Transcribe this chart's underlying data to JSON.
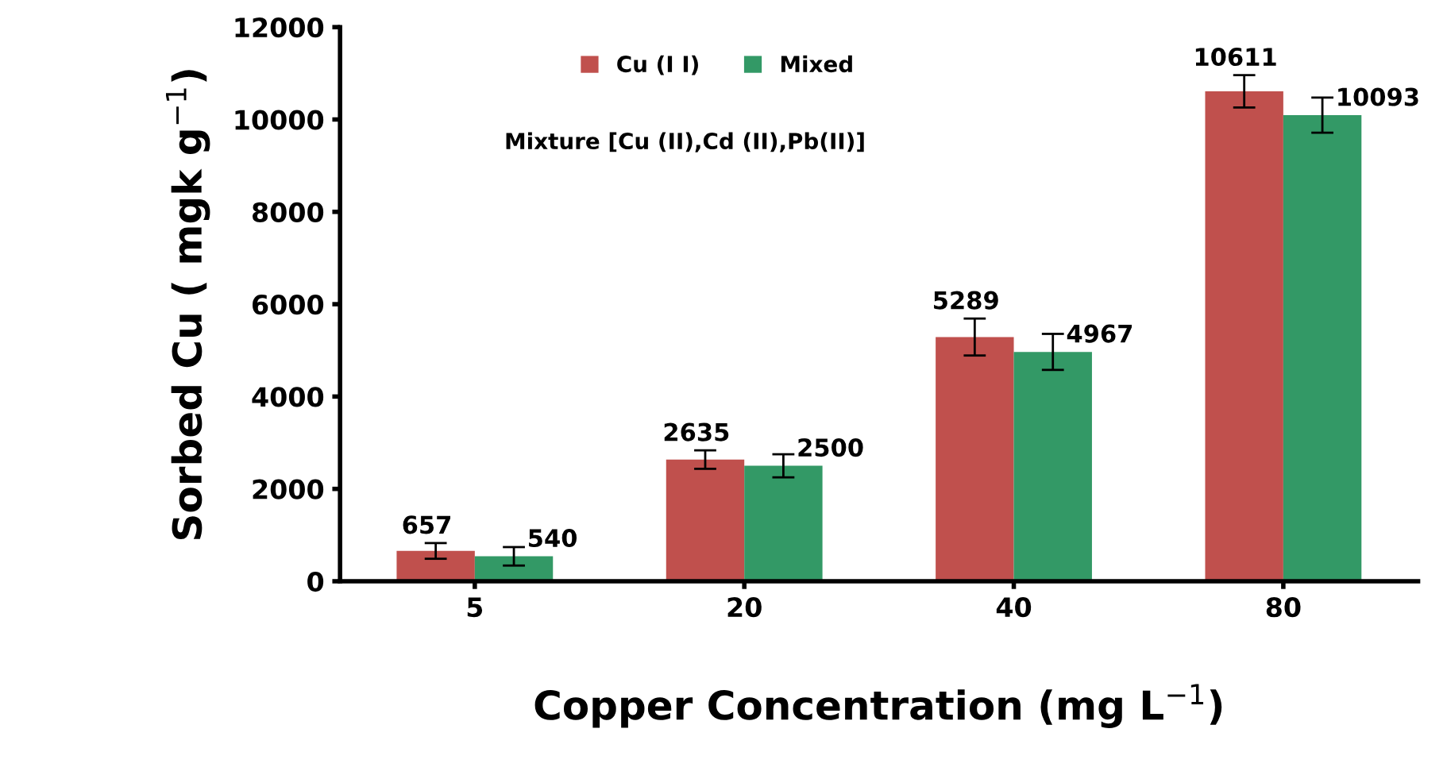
{
  "chart_data": {
    "type": "bar",
    "xlabel": "Copper Concentration (mg L$^{−1}$)",
    "ylabel": "Sorbed Cu ( mgk g$^{−1}$)",
    "categories": [
      "5",
      "20",
      "40",
      "80"
    ],
    "series": [
      {
        "name": "Cu (I I)",
        "color": "#c0504d",
        "values": [
          657,
          2635,
          5289,
          10611
        ],
        "errors": [
          170,
          200,
          400,
          350
        ]
      },
      {
        "name": "Mixed",
        "color": "#339966",
        "values": [
          540,
          2500,
          4967,
          10093
        ],
        "errors": [
          200,
          250,
          390,
          380
        ]
      }
    ],
    "data_labels": true,
    "ylim": [
      0,
      12000
    ],
    "yticks": [
      0,
      2000,
      4000,
      6000,
      8000,
      10000,
      12000
    ],
    "grid": false,
    "legend": "top",
    "annotations": [
      "Mixture [Cu (II),Cd (II),Pb(II)]"
    ]
  }
}
